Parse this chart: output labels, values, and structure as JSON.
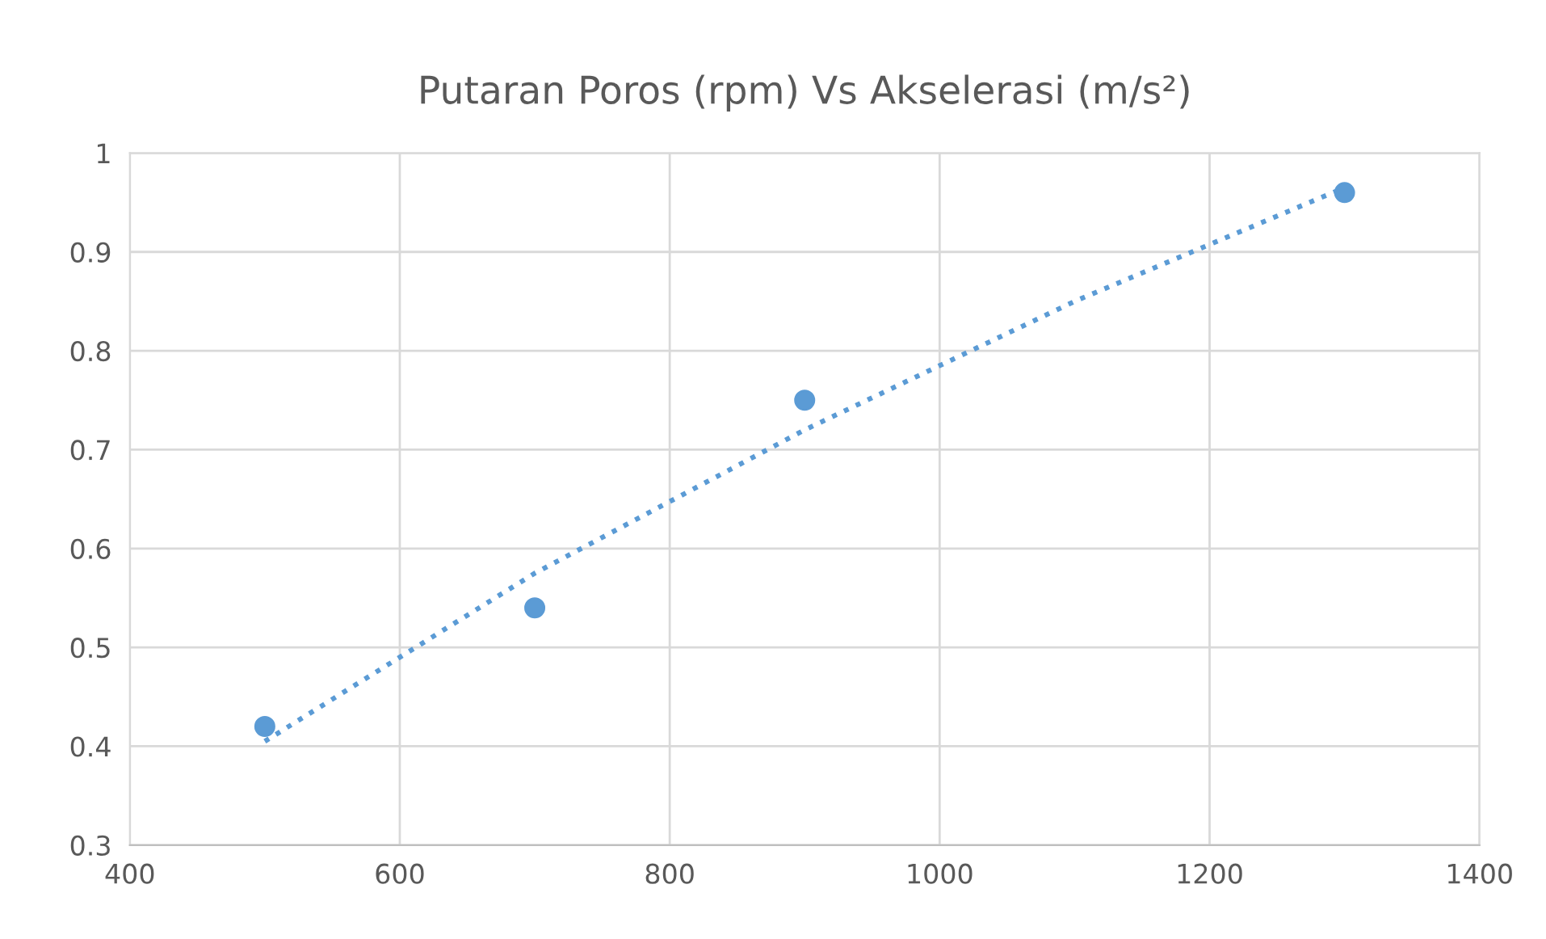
{
  "chart_data": {
    "type": "scatter",
    "title": "Putaran Poros (rpm) Vs Akselerasi (m/s²)",
    "xlim": [
      400,
      1400
    ],
    "xticks": [
      400,
      600,
      800,
      1000,
      1200,
      1400
    ],
    "ylim": [
      0.3,
      1
    ],
    "yticks": [
      0.3,
      0.4,
      0.5,
      0.6,
      0.7,
      0.8,
      0.9,
      1
    ],
    "grid": true,
    "marker": "circle",
    "series": [
      {
        "color": "#5b9bd5",
        "x": [
          500,
          700,
          900,
          1300
        ],
        "values": [
          0.42,
          0.54,
          0.75,
          0.96
        ]
      },
      {
        "type": "line",
        "color": "#5b9bd5",
        "line_style": "dotted",
        "marker": "none",
        "x": [
          500,
          700,
          900,
          1100,
          1300
        ],
        "values": [
          0.405,
          0.575,
          0.72,
          0.85,
          0.965
        ]
      }
    ]
  }
}
